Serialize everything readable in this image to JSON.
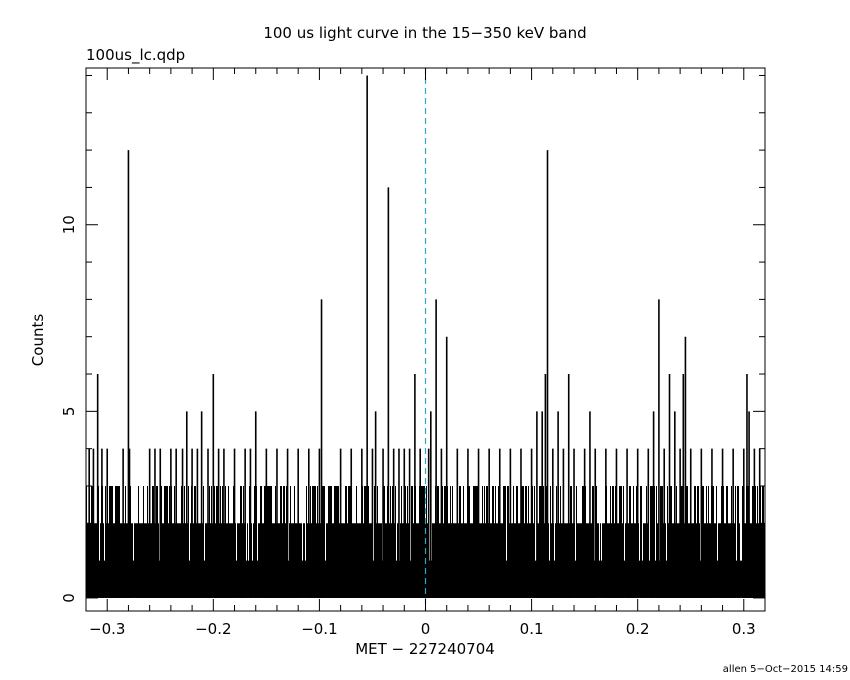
{
  "chart_data": {
    "type": "bar",
    "title": "100 us light curve in the 15−350 keV band",
    "subtitle": "100us_lc.qdp",
    "xlabel": "MET − 227240704",
    "ylabel": "Counts",
    "footer": "allen  5−Oct−2015 14:59",
    "xlim": [
      -0.32,
      0.32
    ],
    "ylim": [
      -0.35,
      14.2
    ],
    "x_ticks": [
      -0.3,
      -0.2,
      -0.1,
      0,
      0.1,
      0.2,
      0.3
    ],
    "x_tick_labels": [
      "−0.3",
      "−0.2",
      "−0.1",
      "0",
      "0.1",
      "0.2",
      "0.3"
    ],
    "y_ticks": [
      0,
      5,
      10
    ],
    "y_tick_labels": [
      "0",
      "5",
      "10"
    ],
    "bin_width": 0.0001,
    "baseline_fill_level": 1,
    "band_level_2_fraction": 0.9,
    "band_level_3_fraction": 0.4,
    "grid": false,
    "series": [
      {
        "points": [
          {
            "x": -0.317,
            "y": 4
          },
          {
            "x": -0.313,
            "y": 4
          },
          {
            "x": -0.309,
            "y": 6
          },
          {
            "x": -0.305,
            "y": 4
          },
          {
            "x": -0.3,
            "y": 4
          },
          {
            "x": -0.285,
            "y": 4
          },
          {
            "x": -0.28,
            "y": 12
          },
          {
            "x": -0.279,
            "y": 4
          },
          {
            "x": -0.26,
            "y": 4
          },
          {
            "x": -0.255,
            "y": 4
          },
          {
            "x": -0.25,
            "y": 4
          },
          {
            "x": -0.24,
            "y": 4
          },
          {
            "x": -0.235,
            "y": 4
          },
          {
            "x": -0.229,
            "y": 4
          },
          {
            "x": -0.225,
            "y": 5
          },
          {
            "x": -0.22,
            "y": 4
          },
          {
            "x": -0.215,
            "y": 4
          },
          {
            "x": -0.211,
            "y": 5
          },
          {
            "x": -0.205,
            "y": 4
          },
          {
            "x": -0.2,
            "y": 6
          },
          {
            "x": -0.195,
            "y": 4
          },
          {
            "x": -0.19,
            "y": 4
          },
          {
            "x": -0.18,
            "y": 4
          },
          {
            "x": -0.17,
            "y": 4
          },
          {
            "x": -0.165,
            "y": 4
          },
          {
            "x": -0.16,
            "y": 5
          },
          {
            "x": -0.15,
            "y": 4
          },
          {
            "x": -0.14,
            "y": 4
          },
          {
            "x": -0.13,
            "y": 4
          },
          {
            "x": -0.12,
            "y": 4
          },
          {
            "x": -0.11,
            "y": 4
          },
          {
            "x": -0.1,
            "y": 4
          },
          {
            "x": -0.098,
            "y": 8
          },
          {
            "x": -0.08,
            "y": 4
          },
          {
            "x": -0.07,
            "y": 4
          },
          {
            "x": -0.06,
            "y": 4
          },
          {
            "x": -0.055,
            "y": 14
          },
          {
            "x": -0.05,
            "y": 4
          },
          {
            "x": -0.047,
            "y": 5
          },
          {
            "x": -0.04,
            "y": 4
          },
          {
            "x": -0.035,
            "y": 11
          },
          {
            "x": -0.03,
            "y": 4
          },
          {
            "x": -0.025,
            "y": 4
          },
          {
            "x": -0.02,
            "y": 4
          },
          {
            "x": -0.015,
            "y": 4
          },
          {
            "x": -0.01,
            "y": 6
          },
          {
            "x": -0.005,
            "y": 4
          },
          {
            "x": 0.003,
            "y": 4
          },
          {
            "x": 0.005,
            "y": 5
          },
          {
            "x": 0.01,
            "y": 8
          },
          {
            "x": 0.015,
            "y": 4
          },
          {
            "x": 0.02,
            "y": 7
          },
          {
            "x": 0.03,
            "y": 4
          },
          {
            "x": 0.04,
            "y": 4
          },
          {
            "x": 0.05,
            "y": 4
          },
          {
            "x": 0.06,
            "y": 4
          },
          {
            "x": 0.07,
            "y": 4
          },
          {
            "x": 0.08,
            "y": 4
          },
          {
            "x": 0.09,
            "y": 4
          },
          {
            "x": 0.1,
            "y": 4
          },
          {
            "x": 0.105,
            "y": 5
          },
          {
            "x": 0.11,
            "y": 5
          },
          {
            "x": 0.113,
            "y": 6
          },
          {
            "x": 0.115,
            "y": 12
          },
          {
            "x": 0.12,
            "y": 4
          },
          {
            "x": 0.125,
            "y": 5
          },
          {
            "x": 0.13,
            "y": 4
          },
          {
            "x": 0.135,
            "y": 6
          },
          {
            "x": 0.14,
            "y": 4
          },
          {
            "x": 0.15,
            "y": 4
          },
          {
            "x": 0.155,
            "y": 5
          },
          {
            "x": 0.16,
            "y": 4
          },
          {
            "x": 0.17,
            "y": 4
          },
          {
            "x": 0.18,
            "y": 4
          },
          {
            "x": 0.19,
            "y": 4
          },
          {
            "x": 0.2,
            "y": 4
          },
          {
            "x": 0.21,
            "y": 4
          },
          {
            "x": 0.215,
            "y": 5
          },
          {
            "x": 0.22,
            "y": 8
          },
          {
            "x": 0.225,
            "y": 4
          },
          {
            "x": 0.23,
            "y": 6
          },
          {
            "x": 0.235,
            "y": 5
          },
          {
            "x": 0.24,
            "y": 4
          },
          {
            "x": 0.243,
            "y": 6
          },
          {
            "x": 0.245,
            "y": 7
          },
          {
            "x": 0.25,
            "y": 4
          },
          {
            "x": 0.26,
            "y": 4
          },
          {
            "x": 0.27,
            "y": 4
          },
          {
            "x": 0.28,
            "y": 4
          },
          {
            "x": 0.29,
            "y": 4
          },
          {
            "x": 0.3,
            "y": 4
          },
          {
            "x": 0.303,
            "y": 6
          },
          {
            "x": 0.305,
            "y": 5
          },
          {
            "x": 0.31,
            "y": 4
          },
          {
            "x": 0.315,
            "y": 4
          }
        ]
      }
    ],
    "trigger_line": {
      "x": 0,
      "color": "#2fa6c9",
      "style": "dashed"
    },
    "bar_color": "#000000",
    "axis_color": "#000000"
  }
}
